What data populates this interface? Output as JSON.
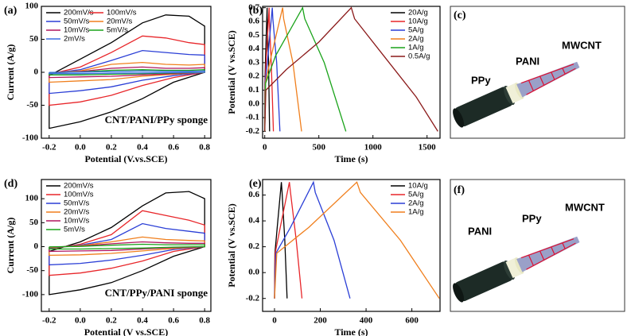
{
  "chart_data": [
    {
      "type": "line",
      "panel_label": "(a)",
      "xlabel": "Potential (V.vs.SCE)",
      "ylabel": "Current (A/g)",
      "annotation": "CNT/PANI/PPy sponge",
      "legend": "upper left",
      "legend_columns": 2,
      "xlim": [
        -0.25,
        0.84
      ],
      "ylim": [
        -100,
        100
      ],
      "xticks": [
        -0.2,
        {
          "value": 0,
          "label": "0.0"
        },
        0.2,
        0.4,
        0.6,
        0.8
      ],
      "yticks": [
        -100,
        -50,
        0,
        50,
        100
      ],
      "x": [
        -0.2,
        0,
        0.2,
        0.4,
        0.55,
        0.7,
        0.8,
        0.8,
        0.6,
        0.4,
        0.2,
        0,
        -0.2,
        -0.2
      ],
      "series": [
        {
          "name": "200mV/s",
          "color": "#000000",
          "values": [
            -5,
            20,
            45,
            75,
            87,
            85,
            70,
            0,
            -15,
            -40,
            -60,
            -75,
            -85,
            -5
          ]
        },
        {
          "name": "100mV/s",
          "color": "#e8262a",
          "values": [
            -3,
            8,
            30,
            55,
            52,
            45,
            42,
            0,
            -8,
            -20,
            -35,
            -45,
            -50,
            -3
          ]
        },
        {
          "name": "50mV/s",
          "color": "#2b3fd6",
          "values": [
            -2,
            4,
            18,
            33,
            30,
            27,
            26,
            0,
            -5,
            -12,
            -22,
            -28,
            -32,
            -2
          ]
        },
        {
          "name": "20mV/s",
          "color": "#f07f1d",
          "values": [
            -1,
            2,
            12,
            15,
            12,
            11,
            12,
            0,
            -3,
            -6,
            -11,
            -13,
            -15,
            -1
          ]
        },
        {
          "name": "10mV/s",
          "color": "#b0175f",
          "values": [
            -1,
            1,
            6,
            8,
            6,
            6,
            7,
            0,
            -2,
            -4,
            -6,
            -7,
            -8,
            -1
          ]
        },
        {
          "name": "5mV/s",
          "color": "#1aa31a",
          "values": [
            -0.5,
            0.5,
            3,
            4,
            3,
            3,
            4,
            0,
            -1,
            -2,
            -3,
            -4,
            -4,
            -0.5
          ]
        },
        {
          "name": "2mV/s",
          "color": "#3b6fe0",
          "values": [
            -0.2,
            0.2,
            1,
            2,
            1.5,
            1.5,
            2,
            0,
            -0.5,
            -1,
            -1.5,
            -2,
            -2,
            -0.2
          ]
        }
      ]
    },
    {
      "type": "line",
      "panel_label": "(b)",
      "xlabel": "Time (s)",
      "ylabel": "Potential (V vs.SCE)",
      "legend": "upper right",
      "legend_columns": 1,
      "xlim": [
        -20,
        1620
      ],
      "ylim": [
        -0.25,
        0.71
      ],
      "xticks": [
        0,
        500,
        1000,
        1500
      ],
      "yticks": [
        -0.2,
        -0.1,
        {
          "value": 0,
          "label": "0.0"
        },
        0.1,
        0.2,
        0.3,
        0.4,
        0.5,
        0.6,
        0.7
      ],
      "series": [
        {
          "name": "20A/g",
          "color": "#000000",
          "x": [
            0,
            1,
            8,
            22,
            23,
            35,
            45
          ],
          "values": [
            -0.2,
            0.15,
            0.35,
            0.7,
            0.62,
            0.3,
            -0.2
          ]
        },
        {
          "name": "10A/g",
          "color": "#e8262a",
          "x": [
            0,
            2,
            15,
            40,
            42,
            60,
            80
          ],
          "values": [
            -0.2,
            0.15,
            0.35,
            0.7,
            0.62,
            0.3,
            -0.2
          ]
        },
        {
          "name": "5A/g",
          "color": "#2b3fd6",
          "x": [
            0,
            3,
            30,
            70,
            75,
            110,
            140
          ],
          "values": [
            -0.2,
            0.15,
            0.35,
            0.7,
            0.62,
            0.3,
            -0.2
          ]
        },
        {
          "name": "2A/g",
          "color": "#f07f1d",
          "x": [
            0,
            5,
            60,
            165,
            175,
            260,
            340
          ],
          "values": [
            -0.2,
            0.15,
            0.35,
            0.7,
            0.62,
            0.3,
            -0.2
          ]
        },
        {
          "name": "1A/g",
          "color": "#1aa31a",
          "x": [
            0,
            8,
            100,
            350,
            370,
            550,
            750
          ],
          "values": [
            -0.2,
            0.15,
            0.35,
            0.7,
            0.62,
            0.3,
            -0.2
          ]
        },
        {
          "name": "0.5A/g",
          "color": "#8b1a1a",
          "x": [
            0,
            10,
            200,
            500,
            800,
            830,
            1100,
            1400,
            1600
          ],
          "values": [
            -0.2,
            0.1,
            0.25,
            0.45,
            0.7,
            0.62,
            0.35,
            0.05,
            -0.2
          ]
        }
      ]
    },
    {
      "type": "line",
      "panel_label": "(d)",
      "xlabel": "Potential (V vs.SCE)",
      "ylabel": "Current (A/g)",
      "annotation": "CNT/PPy/PANI sponge",
      "legend": "upper left",
      "legend_columns": 1,
      "xlim": [
        -0.25,
        0.84
      ],
      "ylim": [
        -135,
        140
      ],
      "xticks": [
        -0.2,
        {
          "value": 0,
          "label": "0.0"
        },
        0.2,
        0.4,
        0.6,
        0.8
      ],
      "yticks": [
        -100,
        -50,
        0,
        50,
        100
      ],
      "x": [
        -0.2,
        0,
        0.2,
        0.4,
        0.55,
        0.7,
        0.8,
        0.8,
        0.6,
        0.4,
        0.2,
        0,
        -0.2,
        -0.2
      ],
      "series": [
        {
          "name": "200mV/s",
          "color": "#000000",
          "values": [
            -10,
            10,
            40,
            85,
            112,
            115,
            100,
            0,
            -20,
            -50,
            -75,
            -90,
            -100,
            -10
          ]
        },
        {
          "name": "100mV/s",
          "color": "#e8262a",
          "values": [
            -5,
            5,
            25,
            75,
            65,
            55,
            45,
            0,
            -10,
            -30,
            -45,
            -55,
            -60,
            -5
          ]
        },
        {
          "name": "50mV/s",
          "color": "#2b3fd6",
          "values": [
            -3,
            3,
            15,
            48,
            38,
            32,
            28,
            0,
            -6,
            -18,
            -28,
            -35,
            -38,
            -3
          ]
        },
        {
          "name": "20mV/s",
          "color": "#f07f1d",
          "values": [
            -2,
            2,
            10,
            20,
            15,
            13,
            12,
            0,
            -4,
            -9,
            -14,
            -17,
            -18,
            -2
          ]
        },
        {
          "name": "10mV/s",
          "color": "#b0175f",
          "values": [
            -1,
            1,
            6,
            10,
            8,
            7,
            7,
            0,
            -2,
            -5,
            -8,
            -9,
            -10,
            -1
          ]
        },
        {
          "name": "5mV/s",
          "color": "#1aa31a",
          "values": [
            -0.5,
            0.5,
            3,
            5,
            4,
            4,
            4,
            0,
            -1,
            -3,
            -4,
            -5,
            -5,
            -0.5
          ]
        }
      ]
    },
    {
      "type": "line",
      "panel_label": "(e)",
      "xlabel": "Time (s)",
      "ylabel": "Potential (V vs.SCE)",
      "legend": "upper right",
      "legend_columns": 1,
      "xlim": [
        -52,
        723
      ],
      "ylim": [
        -0.3,
        0.72
      ],
      "xticks": [
        0,
        200,
        400,
        600
      ],
      "yticks": [
        -0.2,
        {
          "value": 0,
          "label": "0.0"
        },
        0.2,
        0.4,
        0.6
      ],
      "series": [
        {
          "name": "10A/g",
          "color": "#000000",
          "x": [
            0,
            2,
            12,
            30,
            33,
            45,
            55
          ],
          "values": [
            -0.2,
            0.15,
            0.35,
            0.7,
            0.62,
            0.25,
            -0.2
          ]
        },
        {
          "name": "5A/g",
          "color": "#e8262a",
          "x": [
            0,
            3,
            25,
            65,
            70,
            95,
            120
          ],
          "values": [
            -0.2,
            0.15,
            0.35,
            0.7,
            0.62,
            0.25,
            -0.2
          ]
        },
        {
          "name": "2A/g",
          "color": "#2b3fd6",
          "x": [
            0,
            6,
            70,
            170,
            178,
            260,
            330
          ],
          "values": [
            -0.2,
            0.15,
            0.35,
            0.7,
            0.62,
            0.25,
            -0.2
          ]
        },
        {
          "name": "1A/g",
          "color": "#f07f1d",
          "x": [
            0,
            10,
            150,
            360,
            375,
            550,
            720
          ],
          "values": [
            -0.2,
            0.15,
            0.35,
            0.7,
            0.62,
            0.25,
            -0.2
          ]
        }
      ]
    }
  ],
  "illustrations": [
    {
      "panel_label": "(c)",
      "labels": [
        "PPy",
        "PANI",
        "MWCNT"
      ]
    },
    {
      "panel_label": "(f)",
      "labels": [
        "PANI",
        "PPy",
        "MWCNT"
      ]
    }
  ]
}
